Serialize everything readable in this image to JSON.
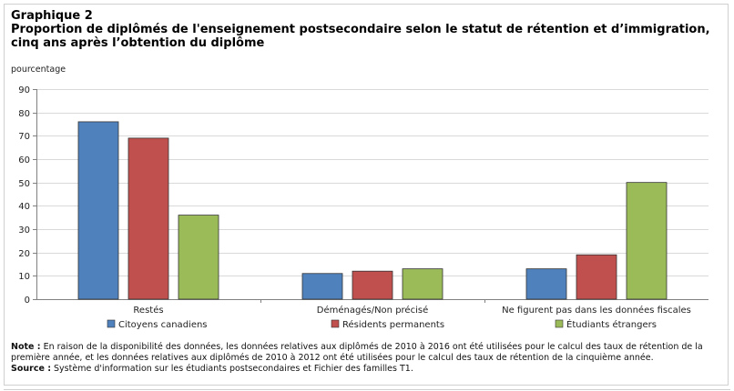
{
  "header": {
    "label": "Graphique 2",
    "title": "Proportion de diplômés de l'enseignement postsecondaire selon le statut de rétention et d’immigration, cinq ans après l’obtention du diplôme",
    "unit": "pourcentage"
  },
  "colors": {
    "blue": "#4F81BD",
    "red": "#C0504D",
    "green": "#9BBB59",
    "grid": "#d9d9d9",
    "axis": "#808080"
  },
  "chart_data": {
    "type": "bar",
    "categories": [
      "Restés",
      "Déménagés/Non précisé",
      "Ne figurent pas dans les données fiscales"
    ],
    "series": [
      {
        "name": "Citoyens canadiens",
        "values": [
          76,
          11,
          13
        ]
      },
      {
        "name": "Résidents permanents",
        "values": [
          69,
          12,
          19
        ]
      },
      {
        "name": "Étudiants étrangers",
        "values": [
          36,
          13,
          50
        ]
      }
    ],
    "ylim": [
      0,
      90
    ],
    "yticks": [
      0,
      10,
      20,
      30,
      40,
      50,
      60,
      70,
      80,
      90
    ],
    "ylabel": "pourcentage",
    "grid": true,
    "legend_position": "bottom"
  },
  "notes": {
    "note_label": "Note :",
    "note_text": "En raison de la disponibilité des données, les données relatives aux diplômés de 2010 à 2016 ont été utilisées pour le calcul des taux de rétention de la première année, et les données relatives aux diplômés de 2010 à 2012 ont été utilisées pour le calcul des taux de rétention de la cinquième année.",
    "source_label": "Source :",
    "source_text": "Système d'information sur les étudiants postsecondaires et Fichier des familles T1."
  }
}
